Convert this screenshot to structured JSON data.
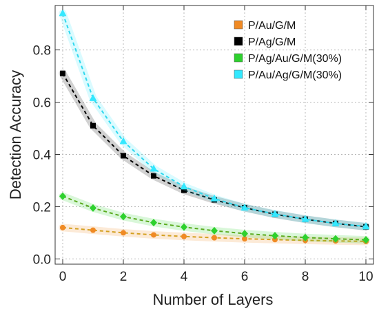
{
  "chart_data": {
    "type": "line",
    "title": "",
    "xlabel": "Number of Layers",
    "ylabel": "Detection Accuracy",
    "xlim": [
      -0.25,
      10.25
    ],
    "ylim": [
      -0.02,
      0.97
    ],
    "x_ticks": [
      0,
      2,
      4,
      6,
      8,
      10
    ],
    "y_ticks": [
      0.0,
      0.2,
      0.4,
      0.6,
      0.8
    ],
    "y_tick_labels": [
      "0.0",
      "0.2",
      "0.4",
      "0.6",
      "0.8"
    ],
    "grid": true,
    "legend_position": "top-right",
    "x": [
      0,
      1,
      2,
      3,
      4,
      5,
      6,
      7,
      8,
      9,
      10
    ],
    "series": [
      {
        "name": "P/Au/G/M",
        "color": "#f08a24",
        "line_color": "#d4a020",
        "marker": "circle",
        "values": [
          0.12,
          0.11,
          0.1,
          0.092,
          0.086,
          0.081,
          0.077,
          0.074,
          0.071,
          0.069,
          0.067
        ]
      },
      {
        "name": "P/Ag/G/M",
        "color": "#000000",
        "line_color": "#000000",
        "marker": "square",
        "values": [
          0.71,
          0.51,
          0.395,
          0.318,
          0.263,
          0.226,
          0.196,
          0.171,
          0.152,
          0.136,
          0.123
        ]
      },
      {
        "name": "P/Ag/Au/G/M(30%)",
        "color": "#2ed12e",
        "line_color": "#5aab1e",
        "marker": "diamond",
        "values": [
          0.24,
          0.195,
          0.162,
          0.139,
          0.122,
          0.108,
          0.097,
          0.089,
          0.082,
          0.077,
          0.073
        ]
      },
      {
        "name": "P/Au/Ag/G/M(30%)",
        "color": "#33e8ff",
        "line_color": "#2fd8ee",
        "marker": "triangle",
        "values": [
          0.94,
          0.615,
          0.45,
          0.345,
          0.277,
          0.231,
          0.196,
          0.172,
          0.152,
          0.136,
          0.124
        ]
      }
    ]
  }
}
